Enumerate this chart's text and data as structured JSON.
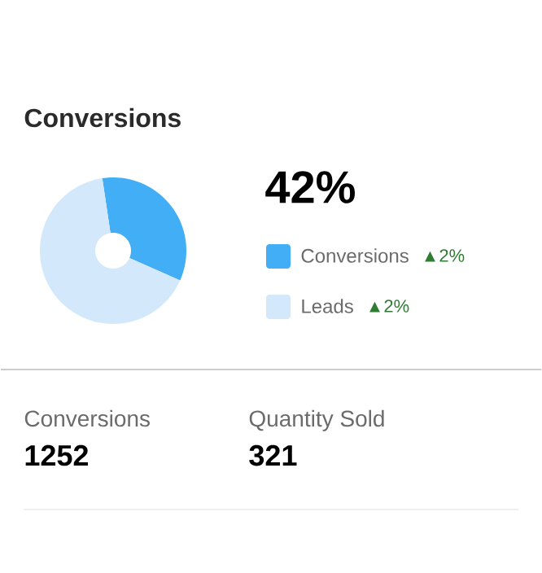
{
  "chart_data": {
    "type": "donut",
    "title": "Conversions",
    "categories": [
      "Conversions",
      "Leads"
    ],
    "values": [
      34,
      66
    ],
    "colors": [
      "#41aef5",
      "#d3e8fa"
    ],
    "legend": "right",
    "annotations": [
      "42%",
      "▲2%",
      "▲2%",
      "Conversions",
      "1252",
      "Quantity Sold",
      "321"
    ]
  }
}
